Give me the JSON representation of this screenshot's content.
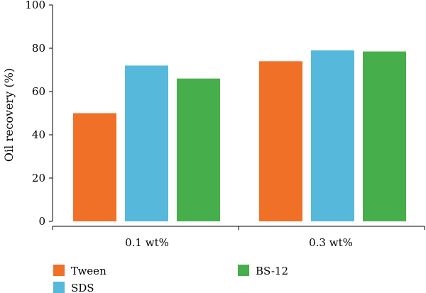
{
  "chart_data": {
    "type": "bar",
    "title": "",
    "xlabel": "",
    "ylabel": "Oil recovery (%)",
    "ylim": [
      0,
      100
    ],
    "yticks": [
      0,
      20,
      40,
      60,
      80,
      100
    ],
    "grid": false,
    "legend_position": "bottom",
    "categories": [
      "0.1 wt%",
      "0.3 wt%"
    ],
    "series": [
      {
        "name": "Tween",
        "color": "#f07028",
        "values": [
          50,
          74
        ]
      },
      {
        "name": "SDS",
        "color": "#56b9dc",
        "values": [
          72,
          79
        ]
      },
      {
        "name": "BS-12",
        "color": "#46af4b",
        "values": [
          66,
          78.5
        ]
      }
    ]
  }
}
